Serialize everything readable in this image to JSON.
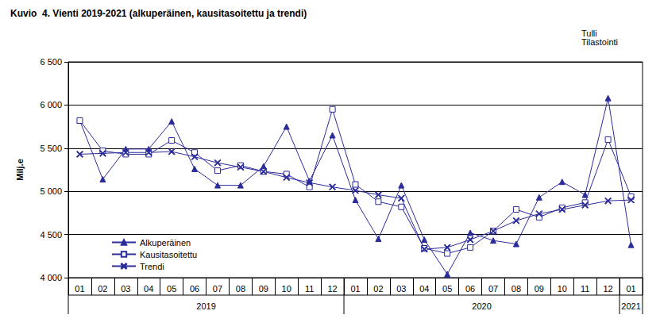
{
  "chart_data": {
    "type": "line",
    "title": "Kuvio  4. Vienti 2019-2021 (alkuperäinen, kausitasoitettu ja trendi)",
    "annotation": "Tulli\nTilastointi",
    "y_label": "Milj.e",
    "categories": [
      "01",
      "02",
      "03",
      "04",
      "05",
      "06",
      "07",
      "08",
      "09",
      "10",
      "11",
      "12",
      "01",
      "02",
      "03",
      "04",
      "05",
      "06",
      "07",
      "08",
      "09",
      "10",
      "11",
      "12",
      "01"
    ],
    "groups": [
      {
        "label": "2019",
        "count": 12
      },
      {
        "label": "2020",
        "count": 12
      },
      {
        "label": "2021",
        "count": 1
      }
    ],
    "series": [
      {
        "name": "Alkuperäinen",
        "color": "#2b2b9a",
        "marker": "triangle",
        "values": [
          5820,
          5140,
          5490,
          5490,
          5810,
          5260,
          5070,
          5070,
          5290,
          5750,
          5120,
          5650,
          4900,
          4450,
          5070,
          4440,
          4040,
          4520,
          4430,
          4390,
          4930,
          5110,
          4960,
          6080,
          4380
        ]
      },
      {
        "name": "Kausitasoitettu",
        "color": "#2b2b9a",
        "marker": "square",
        "values": [
          5820,
          5470,
          5430,
          5430,
          5590,
          5450,
          5240,
          5300,
          5230,
          5200,
          5050,
          5950,
          5080,
          4880,
          4820,
          4340,
          4280,
          4350,
          4540,
          4790,
          4700,
          4810,
          4870,
          5600,
          4940
        ]
      },
      {
        "name": "Trendi",
        "color": "#2b2b9a",
        "marker": "x",
        "values": [
          5430,
          5440,
          5450,
          5450,
          5460,
          5400,
          5330,
          5280,
          5230,
          5160,
          5100,
          5050,
          5010,
          4960,
          4920,
          4330,
          4350,
          4440,
          4540,
          4660,
          4740,
          4790,
          4840,
          4890,
          4900
        ]
      }
    ],
    "ylim": [
      4000,
      6500
    ],
    "yticks": [
      {
        "value": 4000,
        "label": "4 000"
      },
      {
        "value": 4500,
        "label": "4 500"
      },
      {
        "value": 5000,
        "label": "5 000"
      },
      {
        "value": 5500,
        "label": "5 500"
      },
      {
        "value": 6000,
        "label": "6 000"
      },
      {
        "value": 6500,
        "label": "6 500"
      }
    ],
    "grid": true,
    "legend": "bottom-left"
  }
}
